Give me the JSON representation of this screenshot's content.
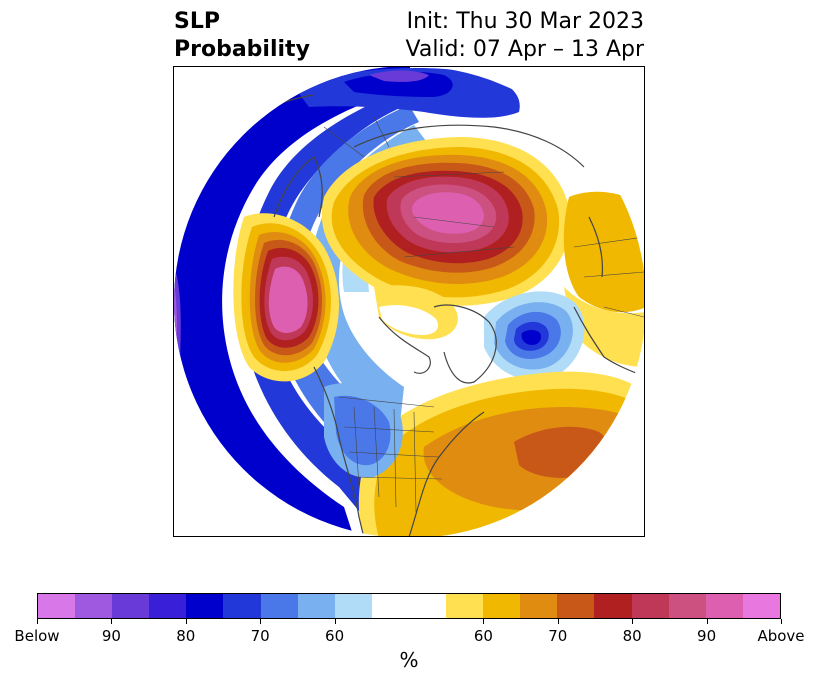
{
  "header": {
    "title_line1": "SLP",
    "title_line2": "Probability",
    "init_label": "Init: Thu 30 Mar 2023",
    "valid_label": "Valid: 07 Apr – 13 Apr"
  },
  "map": {
    "projection": "north-polar-stereographic",
    "features": [
      "coastlines",
      "country borders",
      "US state borders"
    ]
  },
  "colorbar": {
    "colors": [
      "#d878e8",
      "#9f58e0",
      "#6a3ad8",
      "#3a1fd8",
      "#0000cc",
      "#2238d8",
      "#4a78e8",
      "#78b0f0",
      "#b0dcf8",
      "#ffffff",
      "#ffffff",
      "#ffe050",
      "#f0b800",
      "#e08c10",
      "#c85818",
      "#b02020",
      "#c03858",
      "#cc5080",
      "#dd60b0",
      "#e878e0"
    ],
    "tick_labels": [
      "Below",
      "90",
      "80",
      "70",
      "60",
      "60",
      "70",
      "80",
      "90",
      "Above"
    ],
    "unit_label": "%"
  }
}
